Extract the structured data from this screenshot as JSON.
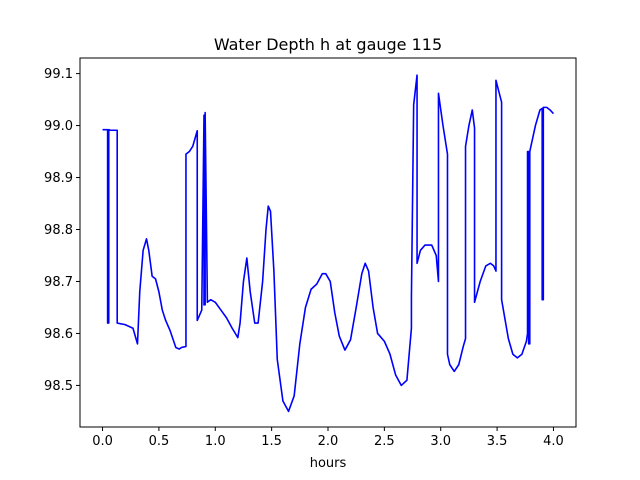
{
  "chart_data": {
    "type": "line",
    "title": "Water Depth h at gauge 115",
    "xlabel": "hours",
    "ylabel": "",
    "xlim": [
      -0.2,
      4.2
    ],
    "ylim": [
      98.42,
      99.13
    ],
    "xticks": [
      0.0,
      0.5,
      1.0,
      1.5,
      2.0,
      2.5,
      3.0,
      3.5,
      4.0
    ],
    "xtick_labels": [
      "0.0",
      "0.5",
      "1.0",
      "1.5",
      "2.0",
      "2.5",
      "3.0",
      "3.5",
      "4.0"
    ],
    "yticks": [
      98.5,
      98.6,
      98.7,
      98.8,
      98.9,
      99.0,
      99.1
    ],
    "ytick_labels": [
      "98.5",
      "98.6",
      "98.7",
      "98.8",
      "98.9",
      "99.0",
      "99.1"
    ],
    "grid": false,
    "series": [
      {
        "color": "#0000ff",
        "x": [
          0.0,
          0.045,
          0.045,
          0.055,
          0.055,
          0.06,
          0.06,
          0.13,
          0.13,
          0.2,
          0.27,
          0.31,
          0.33,
          0.36,
          0.39,
          0.41,
          0.44,
          0.47,
          0.5,
          0.53,
          0.56,
          0.6,
          0.65,
          0.68,
          0.7,
          0.74,
          0.74,
          0.77,
          0.8,
          0.84,
          0.84,
          0.86,
          0.88,
          0.9,
          0.9,
          0.91,
          0.91,
          0.93,
          0.93,
          0.96,
          1.0,
          1.05,
          1.1,
          1.15,
          1.2,
          1.22,
          1.25,
          1.28,
          1.31,
          1.35,
          1.38,
          1.42,
          1.45,
          1.47,
          1.49,
          1.52,
          1.55,
          1.6,
          1.65,
          1.7,
          1.75,
          1.8,
          1.85,
          1.9,
          1.95,
          1.98,
          2.02,
          2.06,
          2.1,
          2.15,
          2.2,
          2.25,
          2.3,
          2.33,
          2.36,
          2.4,
          2.44,
          2.5,
          2.55,
          2.6,
          2.65,
          2.7,
          2.72,
          2.74,
          2.74,
          2.76,
          2.79,
          2.79,
          2.82,
          2.86,
          2.92,
          2.96,
          2.98,
          2.98,
          3.02,
          3.06,
          3.06,
          3.08,
          3.12,
          3.16,
          3.2,
          3.22,
          3.22,
          3.25,
          3.28,
          3.3,
          3.3,
          3.35,
          3.4,
          3.44,
          3.47,
          3.49,
          3.49,
          3.51,
          3.54,
          3.54,
          3.56,
          3.6,
          3.64,
          3.68,
          3.72,
          3.76,
          3.77,
          3.77,
          3.78,
          3.78,
          3.79,
          3.79,
          3.8,
          3.84,
          3.88,
          3.9,
          3.9,
          3.91,
          3.91,
          3.94,
          3.97,
          4.0
        ],
        "y": [
          98.992,
          98.992,
          98.62,
          98.62,
          98.992,
          98.992,
          98.991,
          98.991,
          98.62,
          98.617,
          98.61,
          98.58,
          98.68,
          98.76,
          98.782,
          98.76,
          98.71,
          98.705,
          98.68,
          98.645,
          98.625,
          98.605,
          98.573,
          98.57,
          98.573,
          98.575,
          98.945,
          98.95,
          98.96,
          98.99,
          98.625,
          98.635,
          98.645,
          99.02,
          98.655,
          98.655,
          99.025,
          98.66,
          98.66,
          98.665,
          98.66,
          98.645,
          98.63,
          98.61,
          98.592,
          98.62,
          98.7,
          98.745,
          98.68,
          98.62,
          98.62,
          98.7,
          98.8,
          98.845,
          98.835,
          98.72,
          98.55,
          98.47,
          98.45,
          98.48,
          98.58,
          98.65,
          98.685,
          98.695,
          98.715,
          98.715,
          98.7,
          98.64,
          98.595,
          98.568,
          98.588,
          98.65,
          98.715,
          98.735,
          98.72,
          98.65,
          98.6,
          98.585,
          98.56,
          98.52,
          98.5,
          98.51,
          98.56,
          98.61,
          98.67,
          99.04,
          99.097,
          98.735,
          98.76,
          98.77,
          98.77,
          98.75,
          98.7,
          99.062,
          99.0,
          98.945,
          98.56,
          98.54,
          98.527,
          98.54,
          98.575,
          98.59,
          98.96,
          99.0,
          99.03,
          98.995,
          98.66,
          98.7,
          98.73,
          98.735,
          98.73,
          98.72,
          99.087,
          99.07,
          99.045,
          98.665,
          98.64,
          98.59,
          98.56,
          98.553,
          98.56,
          98.585,
          98.6,
          98.95,
          98.95,
          98.58,
          98.58,
          98.95,
          98.96,
          99.0,
          99.03,
          99.033,
          98.665,
          98.665,
          99.035,
          99.035,
          99.03,
          99.023
        ]
      }
    ]
  }
}
